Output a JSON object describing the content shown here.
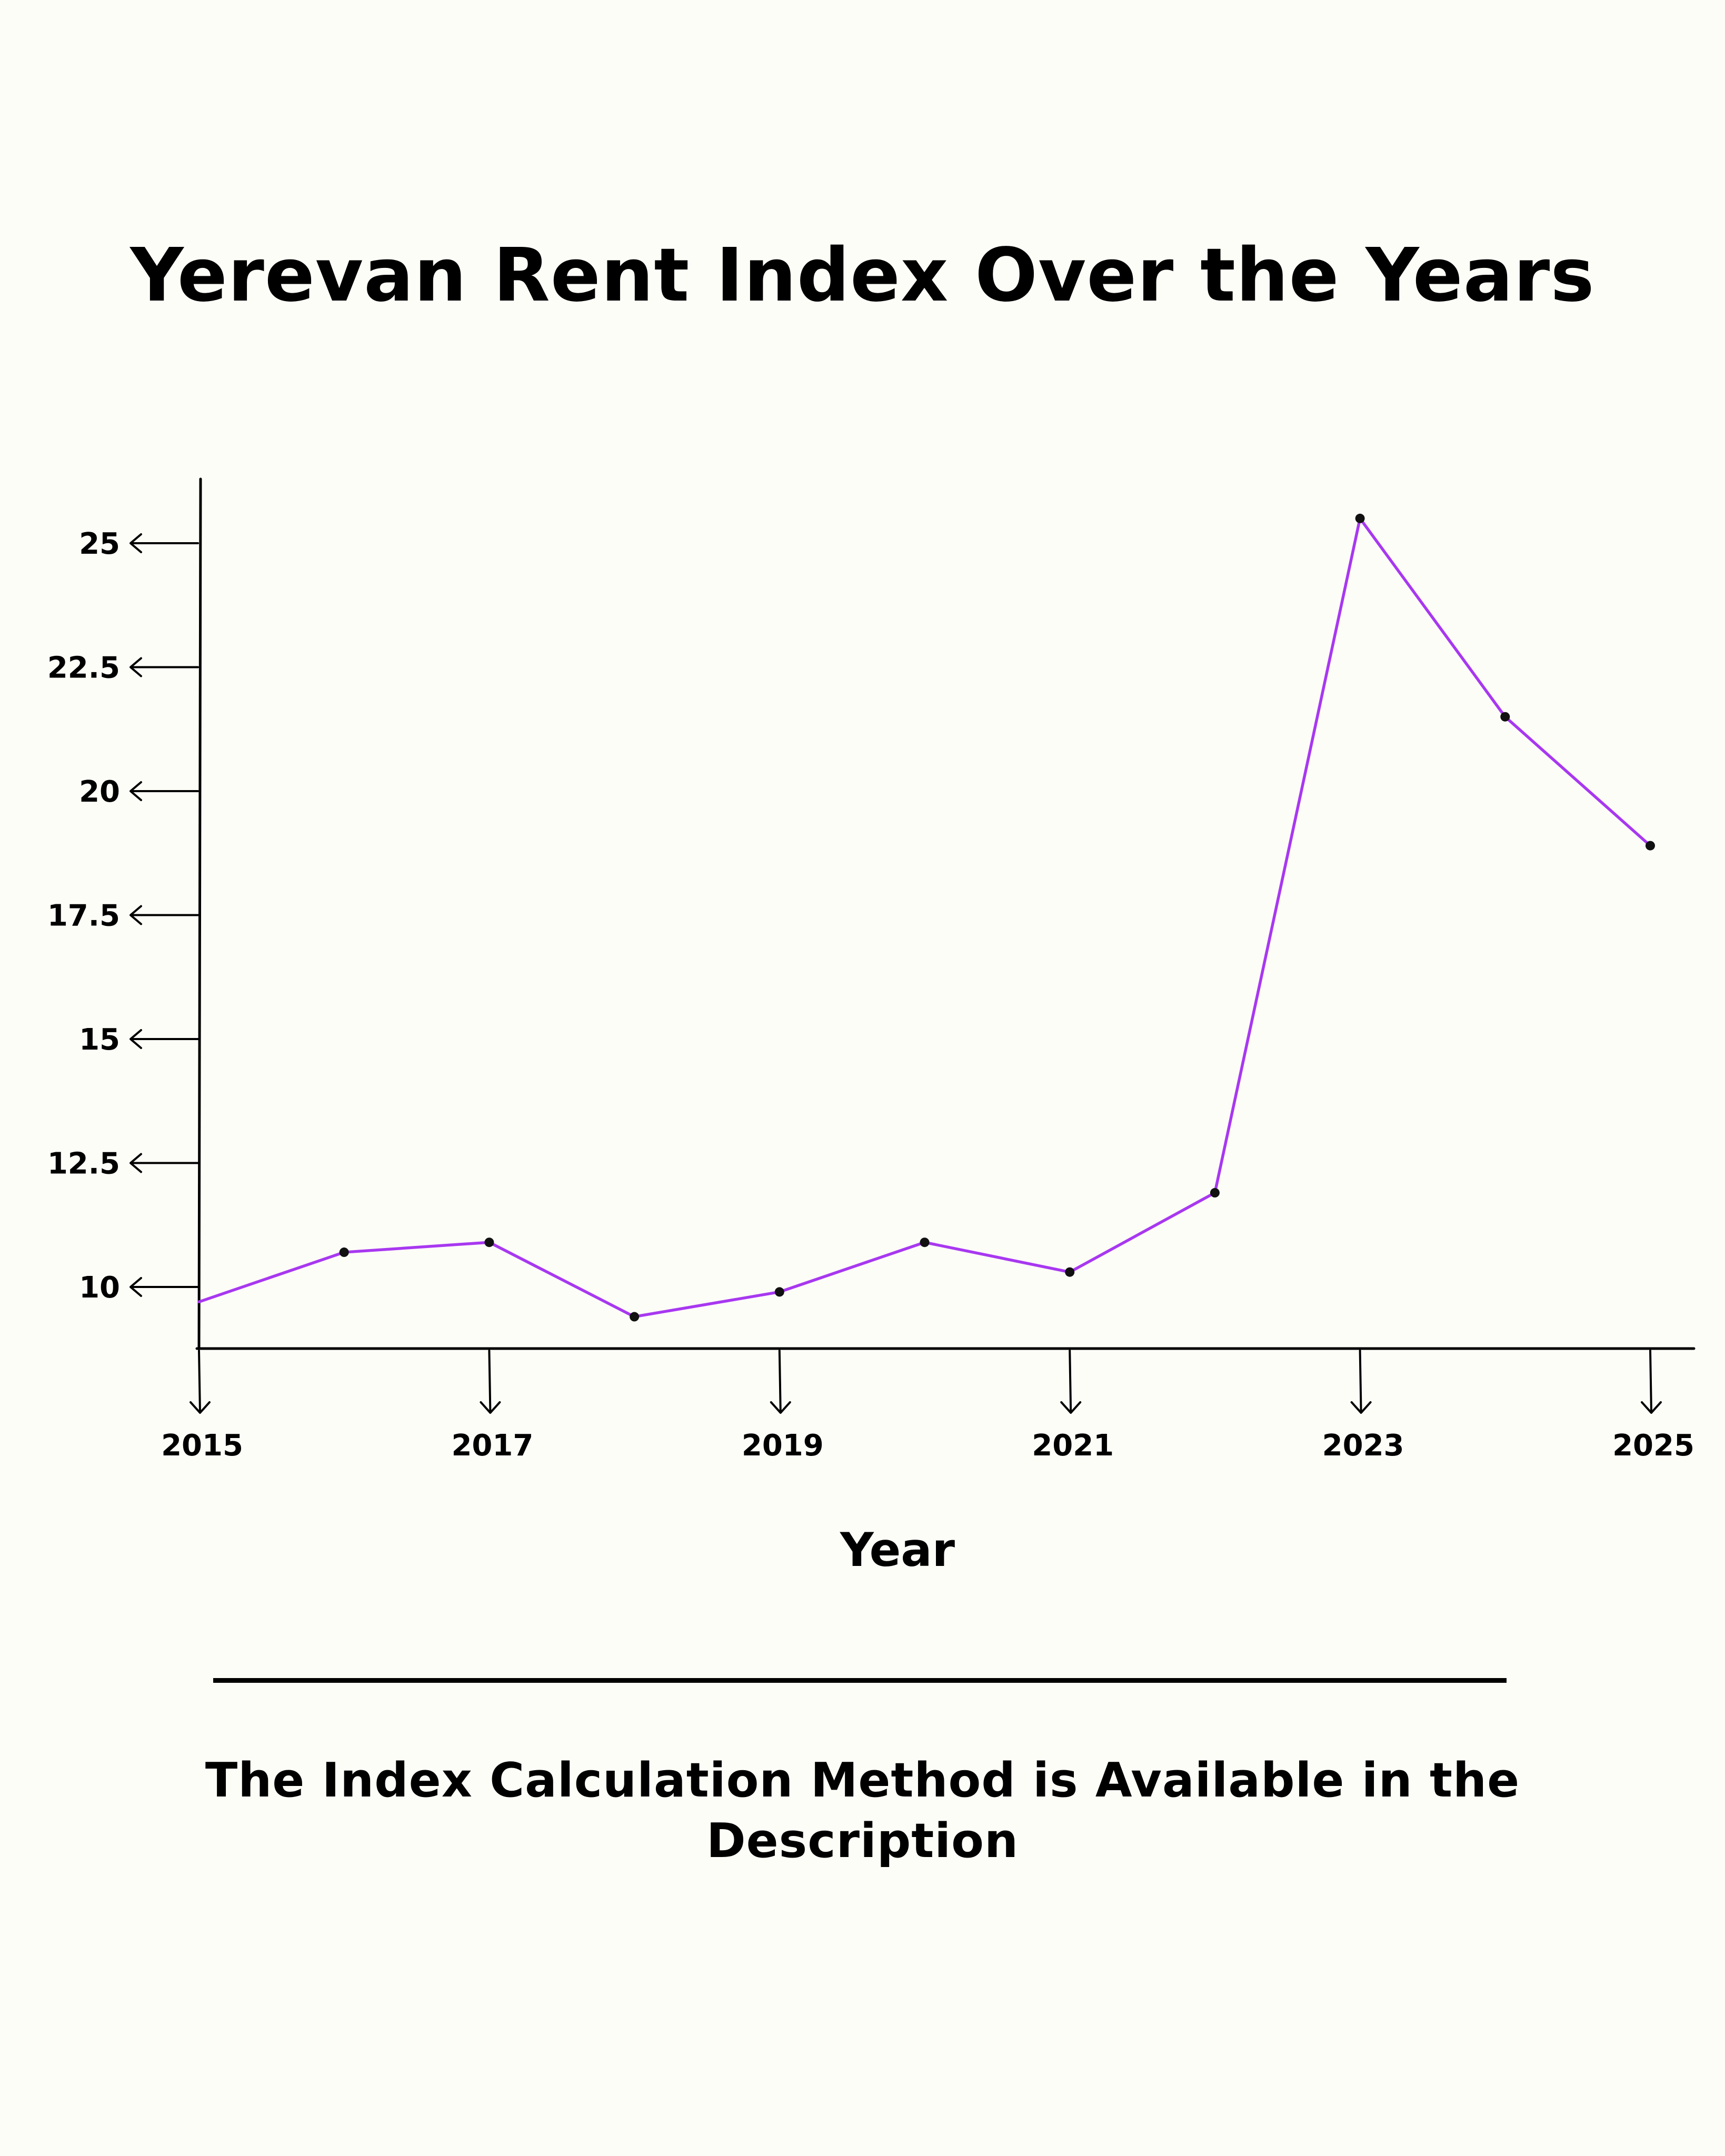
{
  "chart_data": {
    "type": "line",
    "title": "Yerevan Rent Index Over the Years",
    "xlabel": "Year",
    "ylabel": "",
    "x": [
      2015,
      2016,
      2017,
      2018,
      2019,
      2020,
      2021,
      2022,
      2023,
      2024,
      2025
    ],
    "x_tick_labels": [
      "2015",
      "2017",
      "2019",
      "2021",
      "2023",
      "2025"
    ],
    "y_tick_labels": [
      "10",
      "12.5",
      "15",
      "17.5",
      "20",
      "22.5",
      "25"
    ],
    "y_ticks": [
      10,
      12.5,
      15,
      17.5,
      20,
      22.5,
      25
    ],
    "xlim": [
      2015,
      2025.3
    ],
    "ylim": [
      8.75,
      26.3
    ],
    "grid": false,
    "series": [
      {
        "values": [
          9.7,
          10.7,
          10.9,
          9.4,
          9.9,
          10.9,
          10.3,
          11.9,
          25.5,
          21.5,
          18.9
        ],
        "color": "#a838f0"
      }
    ]
  },
  "footnote": "The Index Calculation Method is Available in the Description"
}
